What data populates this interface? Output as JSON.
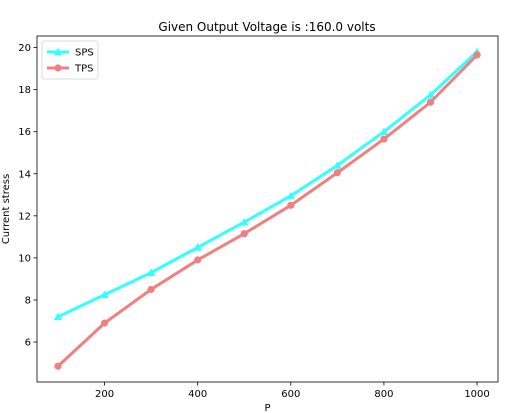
{
  "chart_data": {
    "type": "line",
    "title": "Given Output Voltage is :160.0 volts",
    "xlabel": "P",
    "ylabel": "Current stress",
    "x": [
      100,
      200,
      300,
      400,
      500,
      600,
      700,
      800,
      900,
      1000
    ],
    "series": [
      {
        "name": "SPS",
        "color": "#33ffff",
        "marker": "triangle",
        "values": [
          7.2,
          8.25,
          9.3,
          10.5,
          11.7,
          12.95,
          14.4,
          16.0,
          17.75,
          19.8
        ]
      },
      {
        "name": "TPS",
        "color": "#f08080",
        "marker": "circle",
        "values": [
          4.85,
          6.9,
          8.5,
          9.9,
          11.15,
          12.5,
          14.05,
          15.65,
          17.4,
          19.65
        ]
      }
    ],
    "xlim": [
      55,
      1045
    ],
    "ylim": [
      4.1,
      20.55
    ],
    "xticks": [
      200,
      400,
      600,
      800,
      1000
    ],
    "yticks": [
      6,
      8,
      10,
      12,
      14,
      16,
      18,
      20
    ],
    "grid": false,
    "legend_position": "upper-left"
  }
}
